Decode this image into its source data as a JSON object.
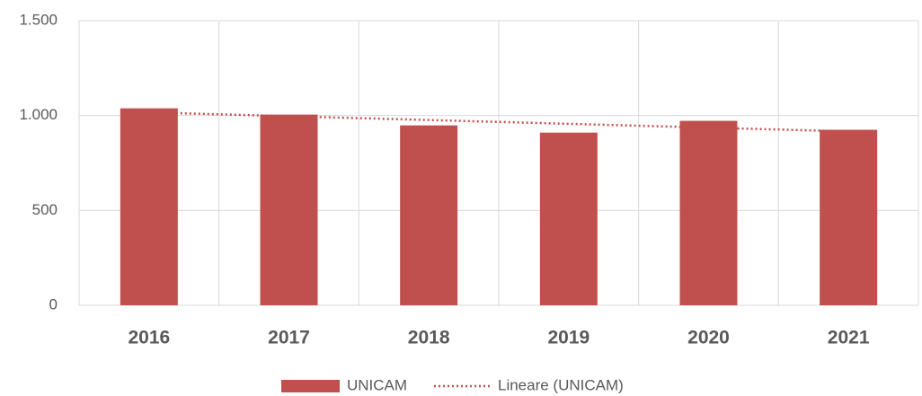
{
  "chart_data": {
    "type": "bar",
    "categories": [
      "2016",
      "2017",
      "2018",
      "2019",
      "2020",
      "2021"
    ],
    "series": [
      {
        "name": "UNICAM",
        "color": "#c0504d",
        "values": [
          1038,
          1005,
          948,
          910,
          972,
          925
        ]
      }
    ],
    "trendline": {
      "name": "Lineare (UNICAM)",
      "color": "#c0504d",
      "kind": "linear"
    },
    "ylim": [
      0,
      1500
    ],
    "yticks": [
      0,
      500,
      {
        "value": 1000,
        "label": "1.000"
      },
      {
        "value": 1500,
        "label": "1.500"
      }
    ],
    "grid": true,
    "legend": "bottom"
  }
}
